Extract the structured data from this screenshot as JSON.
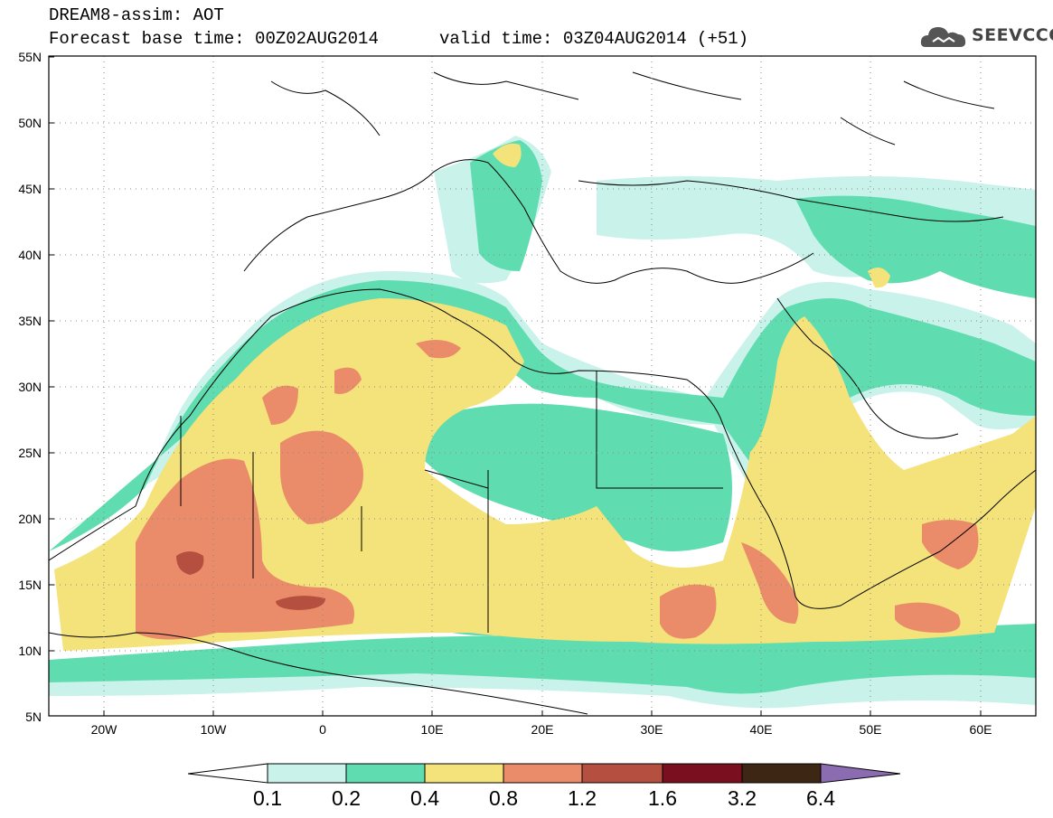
{
  "header": {
    "title_line1": "DREAM8-assim: AOT",
    "base_time": "Forecast base time: 00Z02AUG2014",
    "valid_time": "valid time: 03Z04AUG2014 (+51)",
    "logo_text": "SEEVCCC"
  },
  "map": {
    "lon_range": [
      -25,
      65
    ],
    "lat_range": [
      5,
      55
    ],
    "lat_labels": [
      "55N",
      "50N",
      "45N",
      "40N",
      "35N",
      "30N",
      "25N",
      "20N",
      "15N",
      "10N",
      "5N"
    ],
    "lon_labels": [
      "20W",
      "10W",
      "0",
      "10E",
      "20E",
      "30E",
      "40E",
      "50E",
      "60E"
    ],
    "grid": "dotted"
  },
  "legend": {
    "labels": [
      "0.1",
      "0.2",
      "0.4",
      "0.8",
      "1.2",
      "1.6",
      "3.2",
      "6.4"
    ],
    "colors": [
      "#ffffff",
      "#c8f2ea",
      "#5fdcb0",
      "#f4e27a",
      "#ea8c6a",
      "#b54f3f",
      "#7a0f1f",
      "#3d2613",
      "#8c6cb0"
    ]
  }
}
